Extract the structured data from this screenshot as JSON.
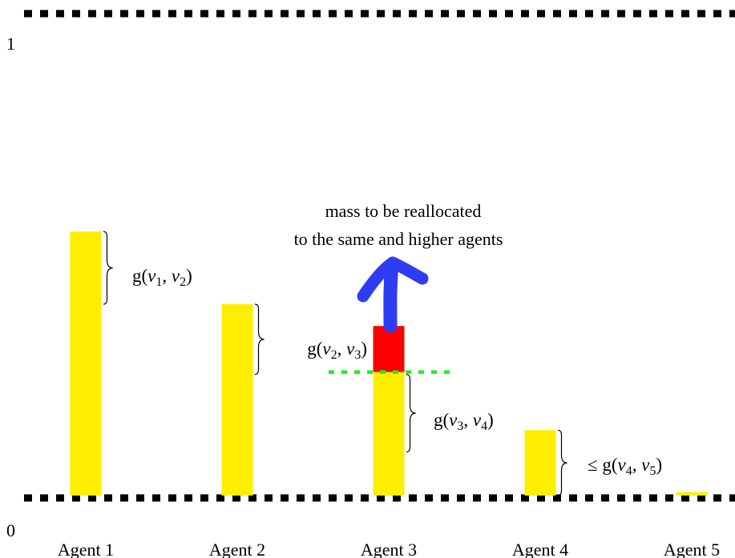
{
  "axis": {
    "top_label": "1",
    "bottom_label": "0",
    "top_value": 1,
    "bottom_value": 0
  },
  "agents": [
    {
      "label": "Agent 1",
      "mass": 0.55
    },
    {
      "label": "Agent 2",
      "mass": 0.4
    },
    {
      "label": "Agent 3",
      "mass": 0.26,
      "excess": 0.095
    },
    {
      "label": "Agent 4",
      "mass": 0.14
    },
    {
      "label": "Agent 5",
      "mass": 0.012
    }
  ],
  "braces": [
    {
      "agent": 0,
      "from": 0.55,
      "to": 0.4,
      "label": "g(v1, v2)",
      "parts": [
        "g(",
        "v",
        "1",
        ", ",
        "v",
        "2",
        ")"
      ]
    },
    {
      "agent": 1,
      "from": 0.4,
      "to": 0.255,
      "label": "g(v2, v3)",
      "parts": [
        "g(",
        "v",
        "2",
        ", ",
        "v",
        "3",
        ")"
      ]
    },
    {
      "agent": 2,
      "from": 0.255,
      "to": 0.095,
      "label": "g(v3, v4)",
      "parts": [
        "g(",
        "v",
        "3",
        ", ",
        "v",
        "4",
        ")"
      ]
    },
    {
      "agent": 3,
      "from": 0.14,
      "to": 0.0,
      "label": "≤ g(v4, v5)",
      "parts": [
        "≤ g(",
        "v",
        "4",
        ", ",
        "v",
        "5",
        ")"
      ]
    }
  ],
  "threshold_level": 0.26,
  "annotation": {
    "line1": "mass to be reallocated",
    "line2": "to the same and higher agents"
  },
  "colors": {
    "bar": "#ffee00",
    "excess": "#ff0000",
    "threshold": "#22ee22",
    "arrow": "#2f3cf5",
    "axis": "#000000"
  }
}
